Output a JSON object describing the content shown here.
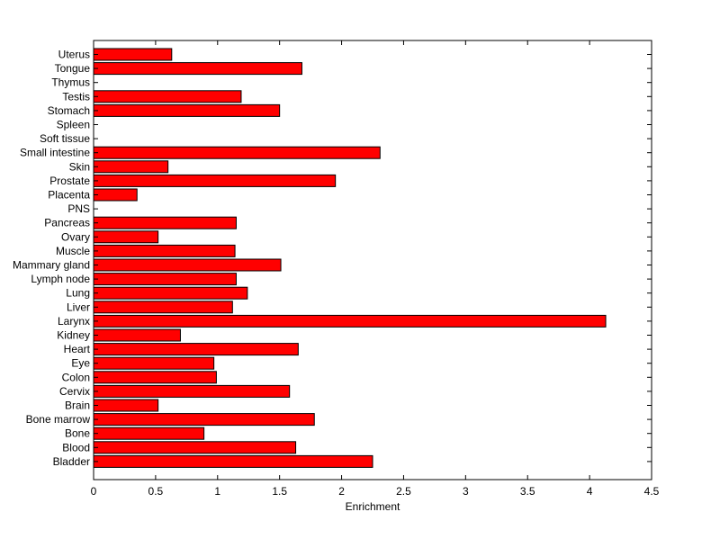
{
  "chart_data": {
    "type": "bar",
    "orientation": "horizontal",
    "title": "",
    "xlabel": "Enrichment",
    "ylabel": "",
    "xlim": [
      0,
      4.5
    ],
    "grid": false,
    "legend": "none",
    "bar_color": "#ff0000",
    "edge_color": "#000000",
    "xticks": [
      "0",
      "0.5",
      "1",
      "1.5",
      "2",
      "2.5",
      "3",
      "3.5",
      "4",
      "4.5"
    ],
    "categories": [
      "Uterus",
      "Tongue",
      "Thymus",
      "Testis",
      "Stomach",
      "Spleen",
      "Soft tissue",
      "Small intestine",
      "Skin",
      "Prostate",
      "Placenta",
      "PNS",
      "Pancreas",
      "Ovary",
      "Muscle",
      "Mammary gland",
      "Lymph node",
      "Lung",
      "Liver",
      "Larynx",
      "Kidney",
      "Heart",
      "Eye",
      "Colon",
      "Cervix",
      "Brain",
      "Bone marrow",
      "Bone",
      "Blood",
      "Bladder"
    ],
    "values": [
      0.63,
      1.68,
      0,
      1.19,
      1.5,
      0,
      0,
      2.31,
      0.6,
      1.95,
      0.35,
      0,
      1.15,
      0.52,
      1.14,
      1.51,
      1.15,
      1.24,
      1.12,
      4.13,
      0.7,
      1.65,
      0.97,
      0.99,
      1.58,
      0.52,
      1.78,
      0.89,
      1.63,
      2.25
    ]
  }
}
